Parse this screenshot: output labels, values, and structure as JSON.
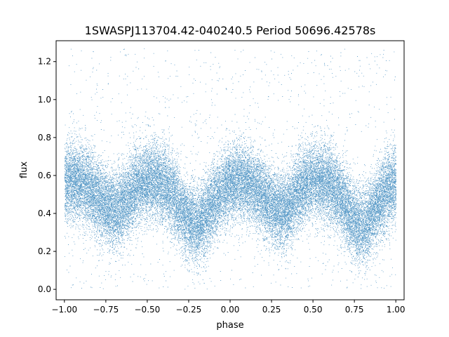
{
  "chart_data": {
    "type": "scatter",
    "title": "1SWASPJ113704.42-040240.5 Period 50696.42578s",
    "xlabel": "phase",
    "ylabel": "flux",
    "xlim": [
      -1.05,
      1.05
    ],
    "ylim": [
      -0.055,
      1.31
    ],
    "xticks": [
      -1.0,
      -0.75,
      -0.5,
      -0.25,
      0.0,
      0.25,
      0.5,
      0.75,
      1.0
    ],
    "xtick_labels": [
      "−1.00",
      "−0.75",
      "−0.50",
      "−0.25",
      "0.00",
      "0.25",
      "0.50",
      "0.75",
      "1.00"
    ],
    "yticks": [
      0.0,
      0.2,
      0.4,
      0.6,
      0.8,
      1.0,
      1.2
    ],
    "ytick_labels": [
      "0.0",
      "0.2",
      "0.4",
      "0.6",
      "0.8",
      "1.0",
      "1.2"
    ],
    "grid": false,
    "legend": "none",
    "marker_color": "#1f77b4",
    "phase_range": [
      -1.0,
      1.0
    ],
    "profile": {
      "phase": [
        0.0,
        0.05,
        0.1,
        0.15,
        0.2,
        0.25,
        0.3,
        0.35,
        0.4,
        0.45,
        0.5,
        0.55,
        0.6,
        0.65,
        0.7,
        0.75,
        0.8,
        0.85,
        0.9,
        0.95,
        1.0
      ],
      "mean_flux": [
        0.56,
        0.57,
        0.56,
        0.53,
        0.48,
        0.44,
        0.41,
        0.44,
        0.5,
        0.55,
        0.57,
        0.57,
        0.55,
        0.5,
        0.43,
        0.36,
        0.33,
        0.38,
        0.46,
        0.52,
        0.56
      ]
    },
    "scatter_sd": 0.1,
    "outlier_range": [
      0.0,
      1.27
    ]
  }
}
